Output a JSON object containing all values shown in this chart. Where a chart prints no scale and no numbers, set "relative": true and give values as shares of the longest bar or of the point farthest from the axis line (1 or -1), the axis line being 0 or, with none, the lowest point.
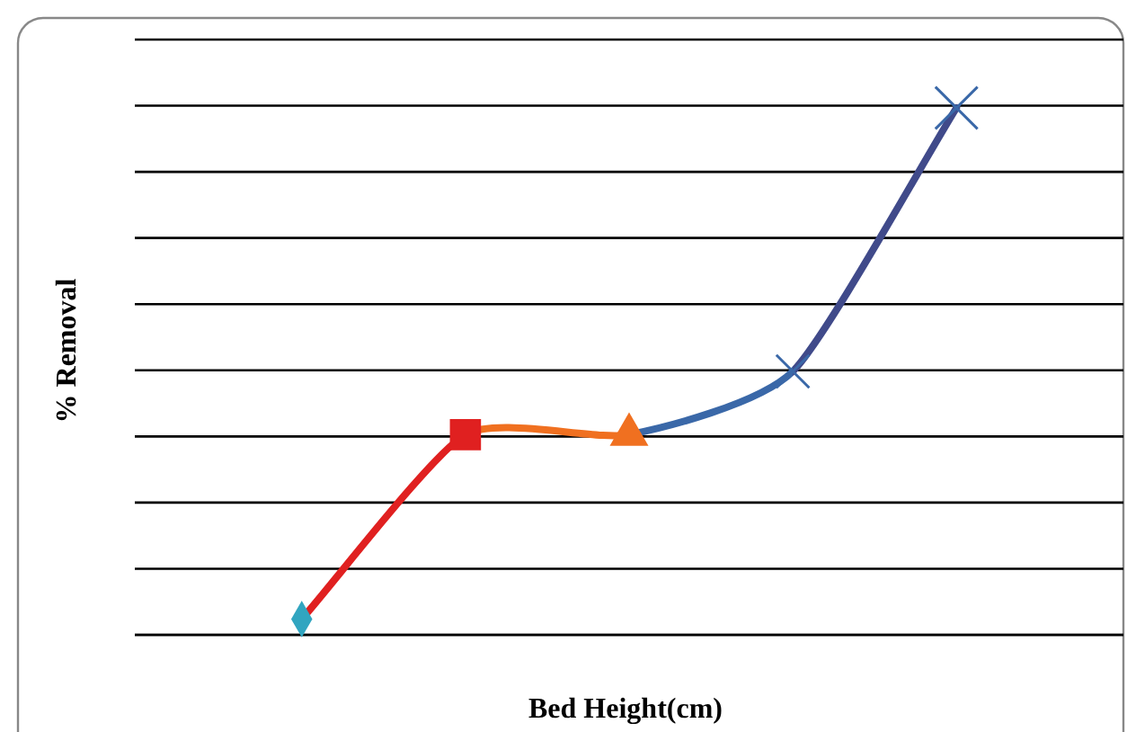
{
  "chart_data": {
    "type": "line",
    "relative": true,
    "xlabel": "Bed Height(cm)",
    "ylabel": "% Removal",
    "categories": [
      null,
      null,
      null,
      null,
      null
    ],
    "grid": "y",
    "series": [
      {
        "color": "#3a68a8",
        "marker": "diamond",
        "values": [
          0.03,
          0.38,
          0.38,
          0.5,
          1
        ],
        "colors": [
          "#31a5c0",
          "#e02020",
          "#f07020",
          "#3a68a8",
          "#404a8a"
        ]
      }
    ]
  }
}
